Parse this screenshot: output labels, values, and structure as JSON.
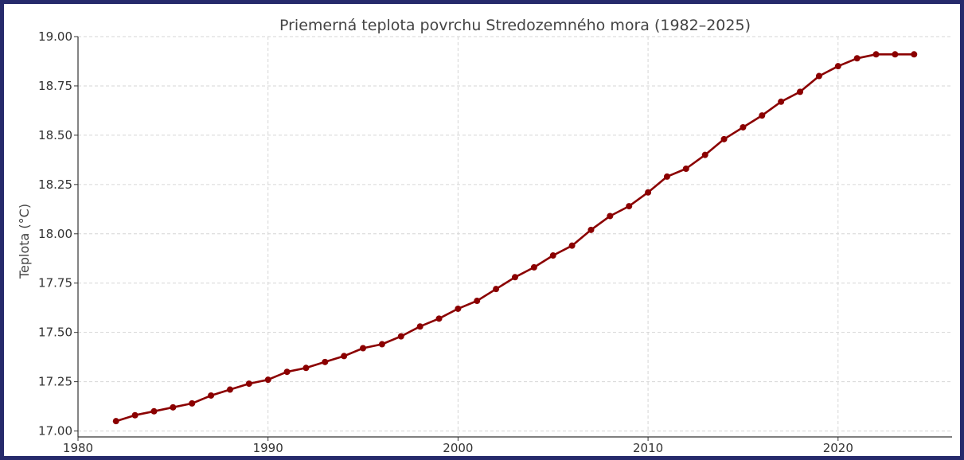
{
  "chart_data": {
    "type": "line",
    "title": "Priemerná teplota povrchu Stredozemného mora (1982–2025)",
    "xlabel": "",
    "ylabel": "Teplota (°C)",
    "xlim": [
      1980,
      2026
    ],
    "ylim": [
      16.97,
      19.0
    ],
    "xticks": [
      1980,
      1990,
      2000,
      2010,
      2020
    ],
    "yticks": [
      17.0,
      17.25,
      17.5,
      17.75,
      18.0,
      18.25,
      18.5,
      18.75,
      19.0
    ],
    "ytick_labels": [
      "17.00",
      "17.25",
      "17.50",
      "17.75",
      "18.00",
      "18.25",
      "18.50",
      "18.75",
      "19.00"
    ],
    "grid": true,
    "color": "#8b0000",
    "x": [
      1982,
      1983,
      1984,
      1985,
      1986,
      1987,
      1988,
      1989,
      1990,
      1991,
      1992,
      1993,
      1994,
      1995,
      1996,
      1997,
      1998,
      1999,
      2000,
      2001,
      2002,
      2003,
      2004,
      2005,
      2006,
      2007,
      2008,
      2009,
      2010,
      2011,
      2012,
      2013,
      2014,
      2015,
      2016,
      2017,
      2018,
      2019,
      2020,
      2021,
      2022,
      2023,
      2024
    ],
    "y": [
      17.05,
      17.08,
      17.1,
      17.12,
      17.14,
      17.18,
      17.21,
      17.24,
      17.26,
      17.3,
      17.32,
      17.35,
      17.38,
      17.42,
      17.44,
      17.48,
      17.53,
      17.57,
      17.62,
      17.66,
      17.72,
      17.78,
      17.83,
      17.89,
      17.94,
      18.02,
      18.09,
      18.14,
      18.21,
      18.29,
      18.33,
      18.4,
      18.48,
      18.54,
      18.6,
      18.67,
      18.72,
      18.8,
      18.85,
      18.89,
      18.91,
      18.91,
      18.91
    ]
  }
}
